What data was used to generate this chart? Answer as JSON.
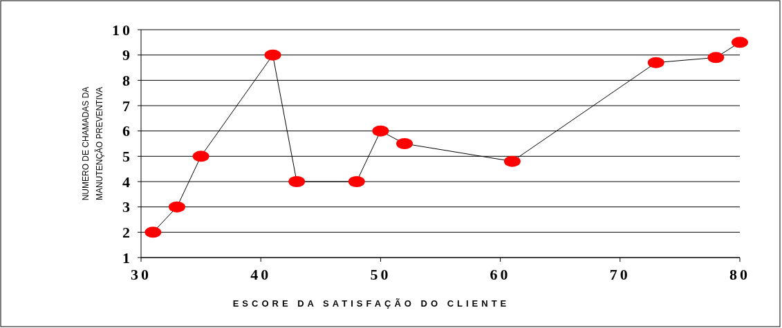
{
  "chart_data": {
    "type": "line",
    "xlabel": "ESCORE DA SATISFAÇÃO DO CLIENTE",
    "ylabel": "NUMERO DE CHAMADAS DA\nMANUTENÇÃO PREVENTIVA",
    "x": [
      31,
      33,
      35,
      41,
      43,
      48,
      50,
      52,
      61,
      73,
      78,
      80
    ],
    "series": [
      {
        "color": "#ff0000",
        "values": [
          2,
          3,
          5,
          9,
          4,
          4,
          6,
          5.5,
          4.8,
          8.7,
          8.9,
          9.5
        ]
      }
    ],
    "xlim": [
      30,
      80
    ],
    "xticks": [
      30,
      40,
      50,
      60,
      70,
      80
    ],
    "ylim": [
      1,
      10
    ],
    "yticks": [
      1,
      2,
      3,
      4,
      5,
      6,
      7,
      8,
      9,
      10
    ],
    "grid": "y",
    "marker": "circle",
    "line_style": "solid"
  }
}
